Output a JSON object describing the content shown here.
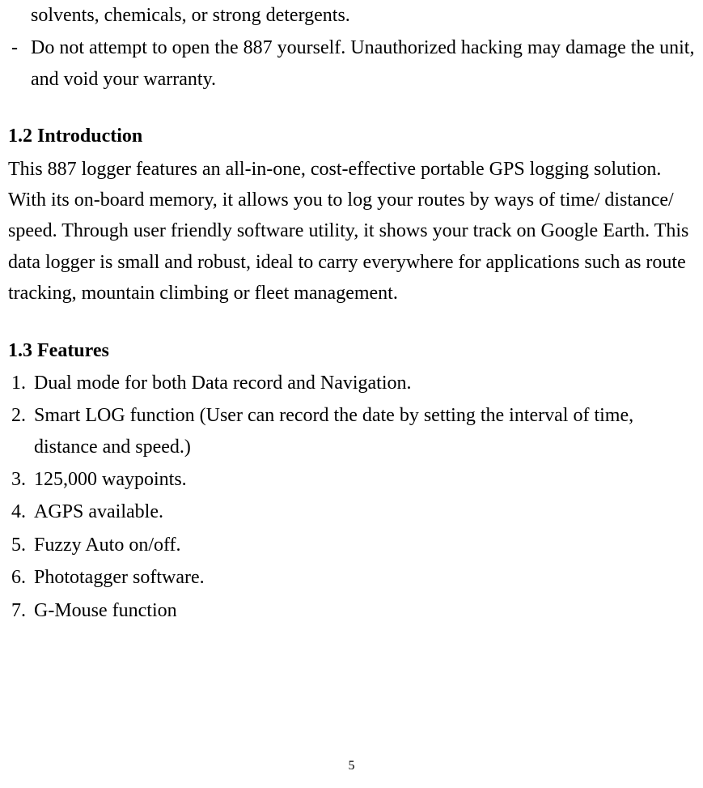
{
  "top_fragment": {
    "line1": "solvents, chemicals, or strong detergents.",
    "bullet_marker": "-",
    "bullet_text": "Do not attempt to open the 887 yourself. Unauthorized hacking may damage the unit, and void your warranty."
  },
  "intro": {
    "heading": "1.2 Introduction",
    "body": "This 887 logger features an all-in-one, cost-effective portable GPS logging solution. With its on-board memory, it allows you to log your routes by ways of time/ distance/ speed. Through user friendly software utility, it shows your track on Google Earth. This data logger is small and robust, ideal to carry everywhere for applications such as route tracking, mountain climbing or fleet management."
  },
  "features": {
    "heading": "1.3 Features",
    "items": [
      {
        "num": "1.",
        "text": "Dual mode for both Data record and Navigation."
      },
      {
        "num": "2.",
        "text": "Smart LOG function (User can record the date by setting the interval of time, distance and speed.)"
      },
      {
        "num": "3.",
        "text": "125,000 waypoints."
      },
      {
        "num": "4.",
        "text": "AGPS available."
      },
      {
        "num": "5.",
        "text": "Fuzzy Auto on/off."
      },
      {
        "num": "6.",
        "text": "Phototagger software."
      },
      {
        "num": "7.",
        "text": "G-Mouse function"
      }
    ]
  },
  "page_number": "5"
}
